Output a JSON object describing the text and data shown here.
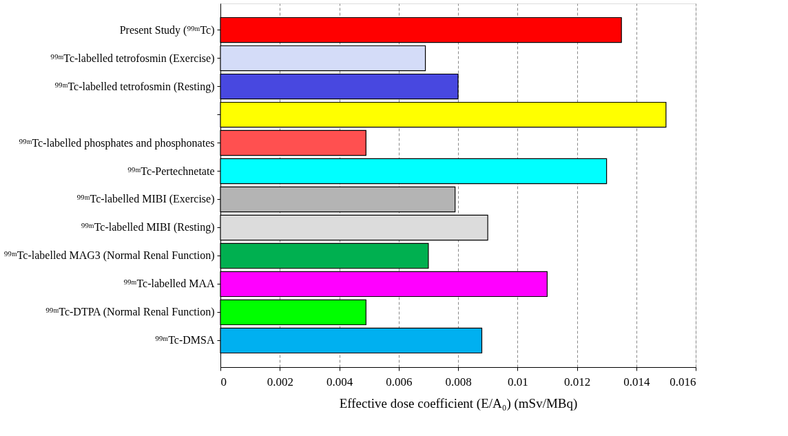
{
  "chart_data": {
    "type": "bar",
    "orientation": "horizontal",
    "xlabel": "Effective dose coefficient (E/A₀) (mSv/MBq)",
    "categories": [
      "Present Study (⁹⁹ᵐTc)",
      "⁹⁹ᵐTc-labelled tetrofosmin (Exercise)",
      "⁹⁹ᵐTc-labelled tetrofosmin (Resting)",
      null,
      "⁹⁹ᵐTc-labelled phosphates and phosphonates",
      "⁹⁹ᵐTc-Pertechnetate",
      "⁹⁹ᵐTc-labelled MIBI (Exercise)",
      "⁹⁹ᵐTc-labelled MIBI (Resting)",
      "⁹⁹ᵐTc-labelled MAG3 (Normal Renal Function)",
      "⁹⁹ᵐTc-labelled MAA",
      "⁹⁹ᵐTc-DTPA (Normal Renal Function)",
      "⁹⁹ᵐTc-DMSA"
    ],
    "values": [
      0.0135,
      0.0069,
      0.008,
      0.015,
      0.0049,
      0.013,
      0.0079,
      0.009,
      0.007,
      0.011,
      0.0049,
      0.0088
    ],
    "colors": [
      "#ff0000",
      "#d4dcf8",
      "#4848e0",
      "#ffff00",
      "#ff5050",
      "#00ffff",
      "#b4b4b4",
      "#dcdcdc",
      "#00b050",
      "#ff00ff",
      "#00ff00",
      "#00b0f0"
    ],
    "xlim": [
      0,
      0.016
    ],
    "xticks": [
      0,
      0.002,
      0.004,
      0.006,
      0.008,
      0.01,
      0.012,
      0.014,
      0.016
    ],
    "grid": "x"
  }
}
